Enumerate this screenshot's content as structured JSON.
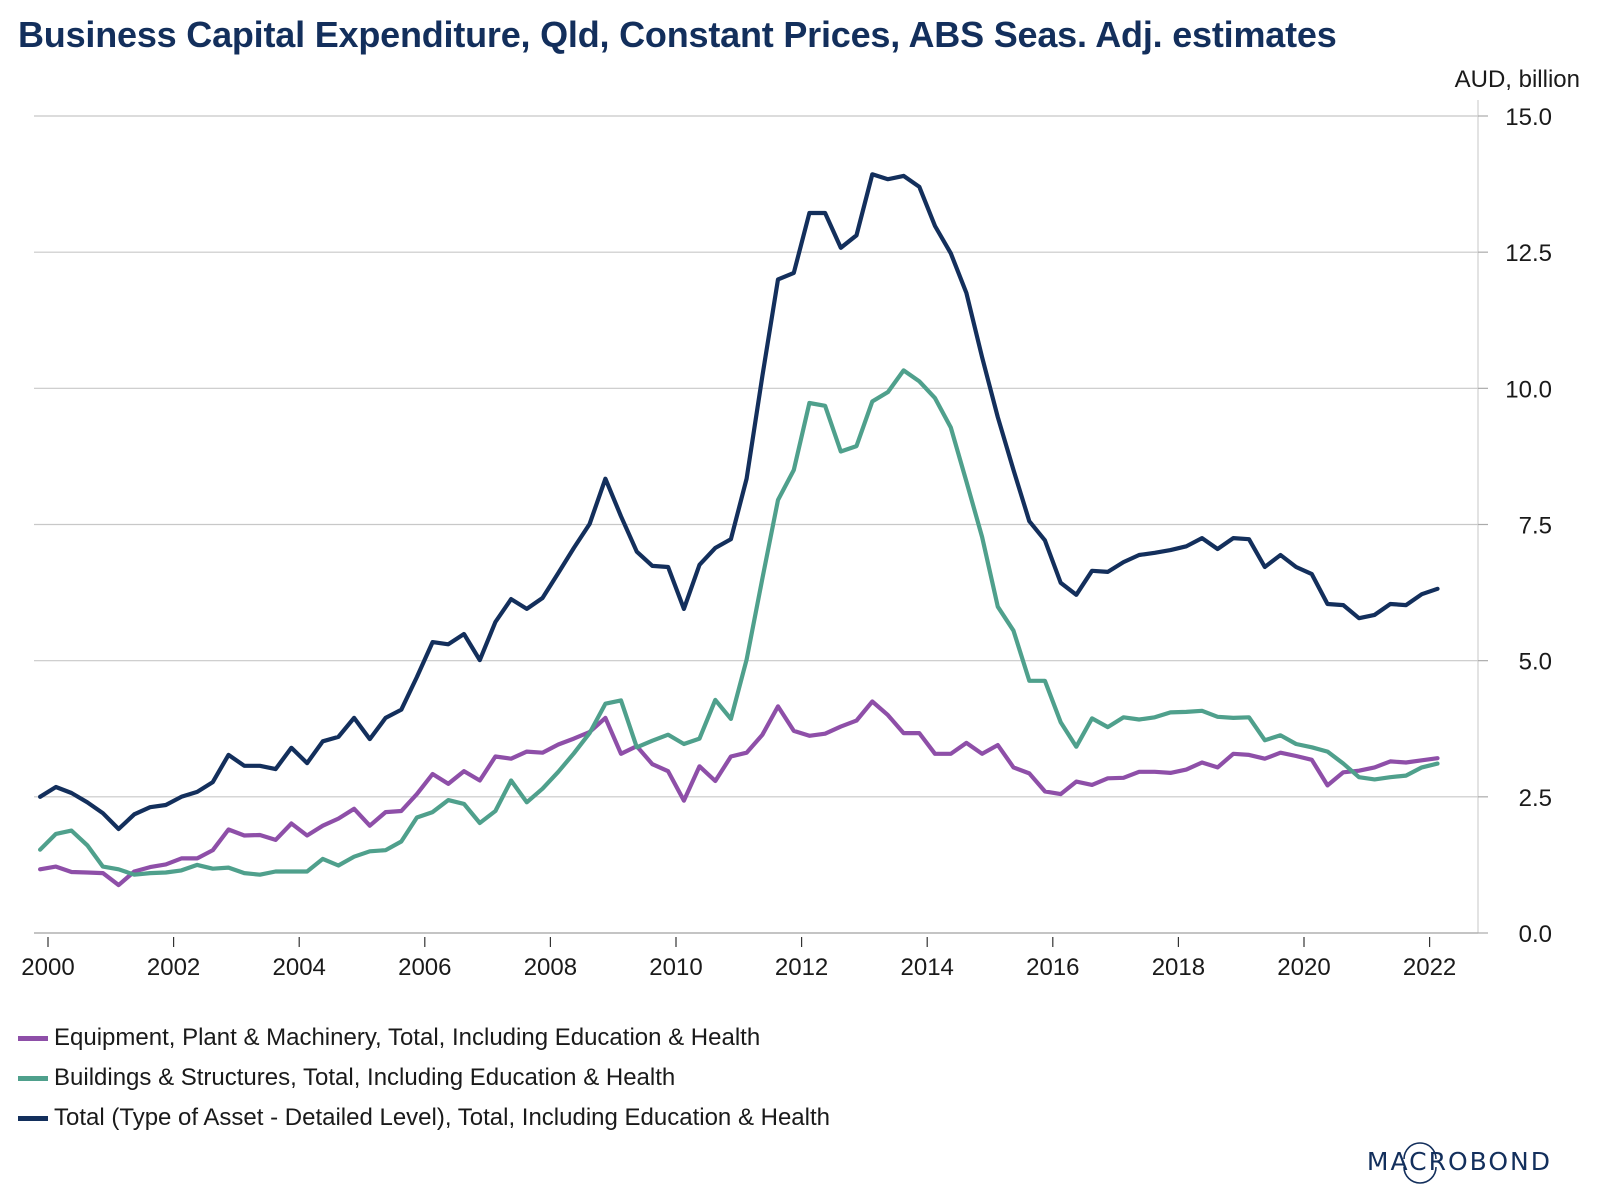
{
  "chart_data": {
    "type": "line",
    "title": "Business Capital Expenditure, Qld, Constant Prices, ABS Seas. Adj. estimates",
    "ylabel": "AUD, billion",
    "xlabel": "",
    "ylim": [
      0,
      15
    ],
    "xlim": [
      1999.85,
      2022.3
    ],
    "yticks": [
      0.0,
      2.5,
      5.0,
      7.5,
      10.0,
      12.5,
      15.0
    ],
    "ytick_labels": [
      "0.0",
      "2.5",
      "5.0",
      "7.5",
      "10.0",
      "12.5",
      "15.0"
    ],
    "xticks": [
      2000,
      2002,
      2004,
      2006,
      2008,
      2010,
      2012,
      2014,
      2016,
      2018,
      2020,
      2022
    ],
    "xtick_labels": [
      "2000",
      "2002",
      "2004",
      "2006",
      "2008",
      "2010",
      "2012",
      "2014",
      "2016",
      "2018",
      "2020",
      "2022"
    ],
    "grid": "horizontal",
    "y_axis_side": "right",
    "legend_position": "bottom-left",
    "x_start": 1999.875,
    "x_step": 0.25,
    "series": [
      {
        "name": "Equipment, Plant & Machinery, Total, Including Education & Health",
        "color": "#8e4fa8",
        "values": [
          1.17,
          1.22,
          1.12,
          1.11,
          1.1,
          0.88,
          1.13,
          1.21,
          1.26,
          1.37,
          1.37,
          1.52,
          1.9,
          1.79,
          1.8,
          1.71,
          2.01,
          1.79,
          1.97,
          2.1,
          2.28,
          1.97,
          2.22,
          2.24,
          2.55,
          2.92,
          2.74,
          2.97,
          2.8,
          3.24,
          3.2,
          3.33,
          3.31,
          3.46,
          3.57,
          3.69,
          3.95,
          3.29,
          3.43,
          3.1,
          2.97,
          2.43,
          3.06,
          2.79,
          3.24,
          3.31,
          3.64,
          4.16,
          3.71,
          3.62,
          3.66,
          3.79,
          3.9,
          4.25,
          4.0,
          3.67,
          3.67,
          3.29,
          3.29,
          3.49,
          3.29,
          3.45,
          3.04,
          2.93,
          2.6,
          2.55,
          2.78,
          2.72,
          2.84,
          2.85,
          2.96,
          2.96,
          2.94,
          3.0,
          3.13,
          3.04,
          3.29,
          3.27,
          3.2,
          3.31,
          3.25,
          3.18,
          2.71,
          2.95,
          2.98,
          3.04,
          3.15,
          3.13,
          3.17,
          3.21
        ]
      },
      {
        "name": "Buildings & Structures, Total, Including Education & Health",
        "color": "#4fa08c",
        "values": [
          1.53,
          1.82,
          1.88,
          1.61,
          1.22,
          1.17,
          1.07,
          1.1,
          1.11,
          1.15,
          1.25,
          1.18,
          1.2,
          1.1,
          1.07,
          1.13,
          1.13,
          1.13,
          1.36,
          1.24,
          1.4,
          1.5,
          1.52,
          1.68,
          2.12,
          2.22,
          2.44,
          2.37,
          2.02,
          2.24,
          2.8,
          2.4,
          2.65,
          2.96,
          3.3,
          3.67,
          4.21,
          4.27,
          3.41,
          3.53,
          3.64,
          3.47,
          3.57,
          4.28,
          3.93,
          5.02,
          6.51,
          7.95,
          8.5,
          9.73,
          9.68,
          8.84,
          8.94,
          9.76,
          9.93,
          10.33,
          10.13,
          9.82,
          9.28,
          8.29,
          7.27,
          5.99,
          5.55,
          4.63,
          4.63,
          3.87,
          3.42,
          3.94,
          3.78,
          3.96,
          3.92,
          3.96,
          4.05,
          4.06,
          4.08,
          3.97,
          3.95,
          3.96,
          3.54,
          3.63,
          3.47,
          3.41,
          3.33,
          3.11,
          2.86,
          2.82,
          2.86,
          2.89,
          3.04,
          3.11
        ]
      },
      {
        "name": "Total (Type of Asset - Detailed Level), Total, Including Education & Health",
        "color": "#132f5c",
        "values": [
          2.5,
          2.68,
          2.57,
          2.4,
          2.2,
          1.91,
          2.18,
          2.31,
          2.35,
          2.5,
          2.59,
          2.77,
          3.27,
          3.07,
          3.07,
          3.01,
          3.4,
          3.12,
          3.52,
          3.6,
          3.95,
          3.56,
          3.95,
          4.1,
          4.7,
          5.34,
          5.3,
          5.49,
          5.01,
          5.71,
          6.13,
          5.95,
          6.15,
          6.61,
          7.07,
          7.51,
          8.34,
          7.65,
          7.0,
          6.74,
          6.72,
          5.95,
          6.76,
          7.07,
          7.23,
          8.34,
          10.23,
          12.0,
          12.12,
          13.22,
          13.22,
          12.58,
          12.81,
          13.93,
          13.84,
          13.9,
          13.7,
          12.98,
          12.48,
          11.75,
          10.57,
          9.47,
          8.5,
          7.56,
          7.21,
          6.43,
          6.21,
          6.65,
          6.63,
          6.81,
          6.94,
          6.98,
          7.03,
          7.1,
          7.25,
          7.05,
          7.25,
          7.23,
          6.72,
          6.94,
          6.72,
          6.59,
          6.04,
          6.02,
          5.78,
          5.84,
          6.04,
          6.02,
          6.22,
          6.32
        ]
      }
    ]
  },
  "header": {
    "title": "Business Capital Expenditure, Qld, Constant Prices, ABS Seas. Adj. estimates",
    "unit_label": "AUD, billion"
  },
  "legend": {
    "items": [
      {
        "label": "Equipment, Plant & Machinery, Total, Including Education & Health",
        "color": "#8e4fa8"
      },
      {
        "label": "Buildings & Structures, Total, Including Education & Health",
        "color": "#4fa08c"
      },
      {
        "label": "Total (Type of Asset - Detailed Level), Total, Including Education & Health",
        "color": "#132f5c"
      }
    ]
  },
  "branding": {
    "logo_text": "MACROBOND",
    "logo_color": "#132f5c"
  }
}
